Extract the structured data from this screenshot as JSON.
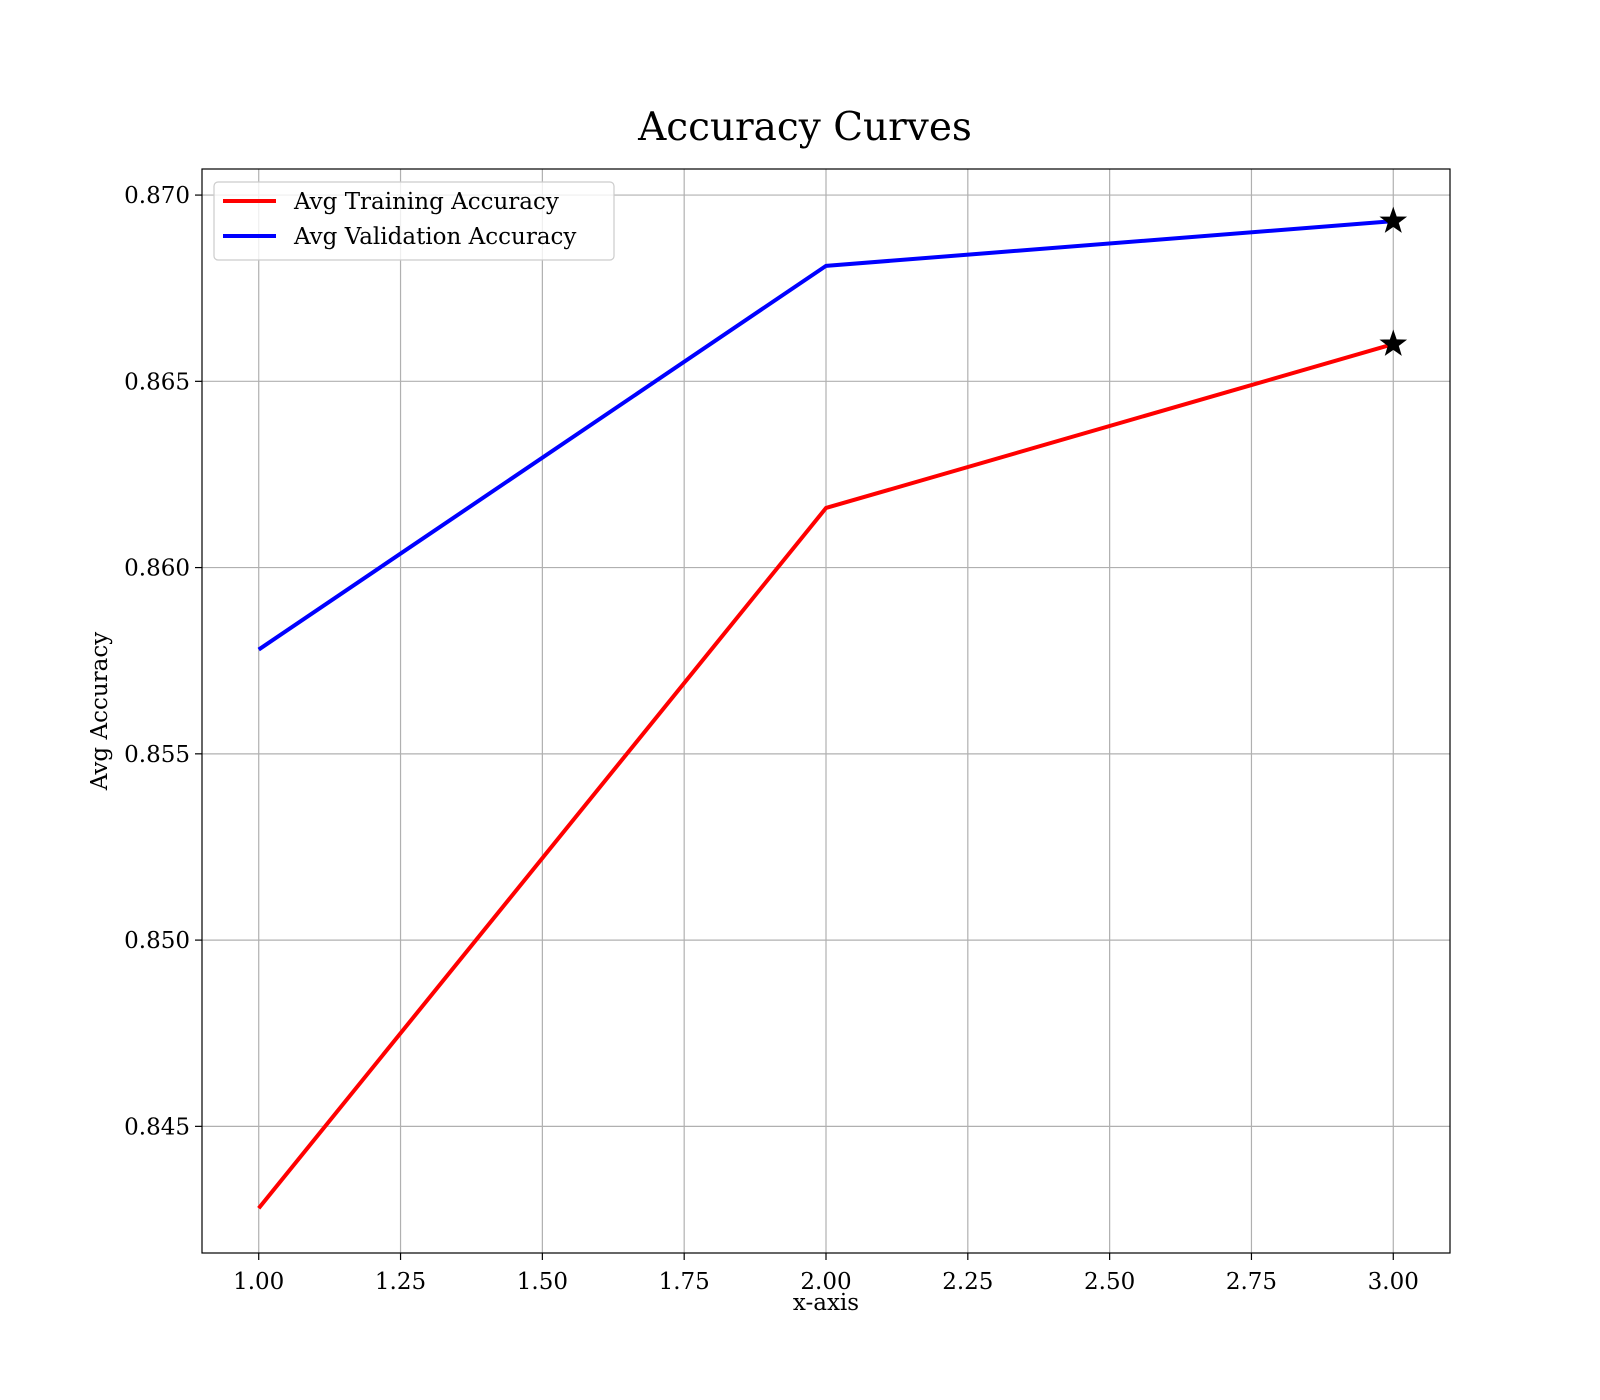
{
  "chart_data": {
    "type": "line",
    "title": "Accuracy Curves",
    "xlabel": "x-axis",
    "ylabel": "Avg Accuracy",
    "x": [
      1,
      2,
      3
    ],
    "xlim": [
      0.9,
      3.1
    ],
    "ylim": [
      0.8416,
      0.8707
    ],
    "xticks": [
      1.0,
      1.25,
      1.5,
      1.75,
      2.0,
      2.25,
      2.5,
      2.75,
      3.0
    ],
    "xtick_labels": [
      "1.00",
      "1.25",
      "1.50",
      "1.75",
      "2.00",
      "2.25",
      "2.50",
      "2.75",
      "3.00"
    ],
    "yticks": [
      0.845,
      0.85,
      0.855,
      0.86,
      0.865,
      0.87
    ],
    "ytick_labels": [
      "0.845",
      "0.850",
      "0.855",
      "0.860",
      "0.865",
      "0.870"
    ],
    "grid": true,
    "legend_position": "top-left",
    "series": [
      {
        "name": "Avg Training Accuracy",
        "color": "#ff0000",
        "values": [
          0.8428,
          0.8616,
          0.866
        ],
        "best_marker": {
          "x": 3,
          "y": 0.866,
          "symbol": "star"
        }
      },
      {
        "name": "Avg Validation Accuracy",
        "color": "#0000ff",
        "values": [
          0.8578,
          0.8681,
          0.8693
        ],
        "best_marker": {
          "x": 3,
          "y": 0.8693,
          "symbol": "star"
        }
      }
    ]
  }
}
